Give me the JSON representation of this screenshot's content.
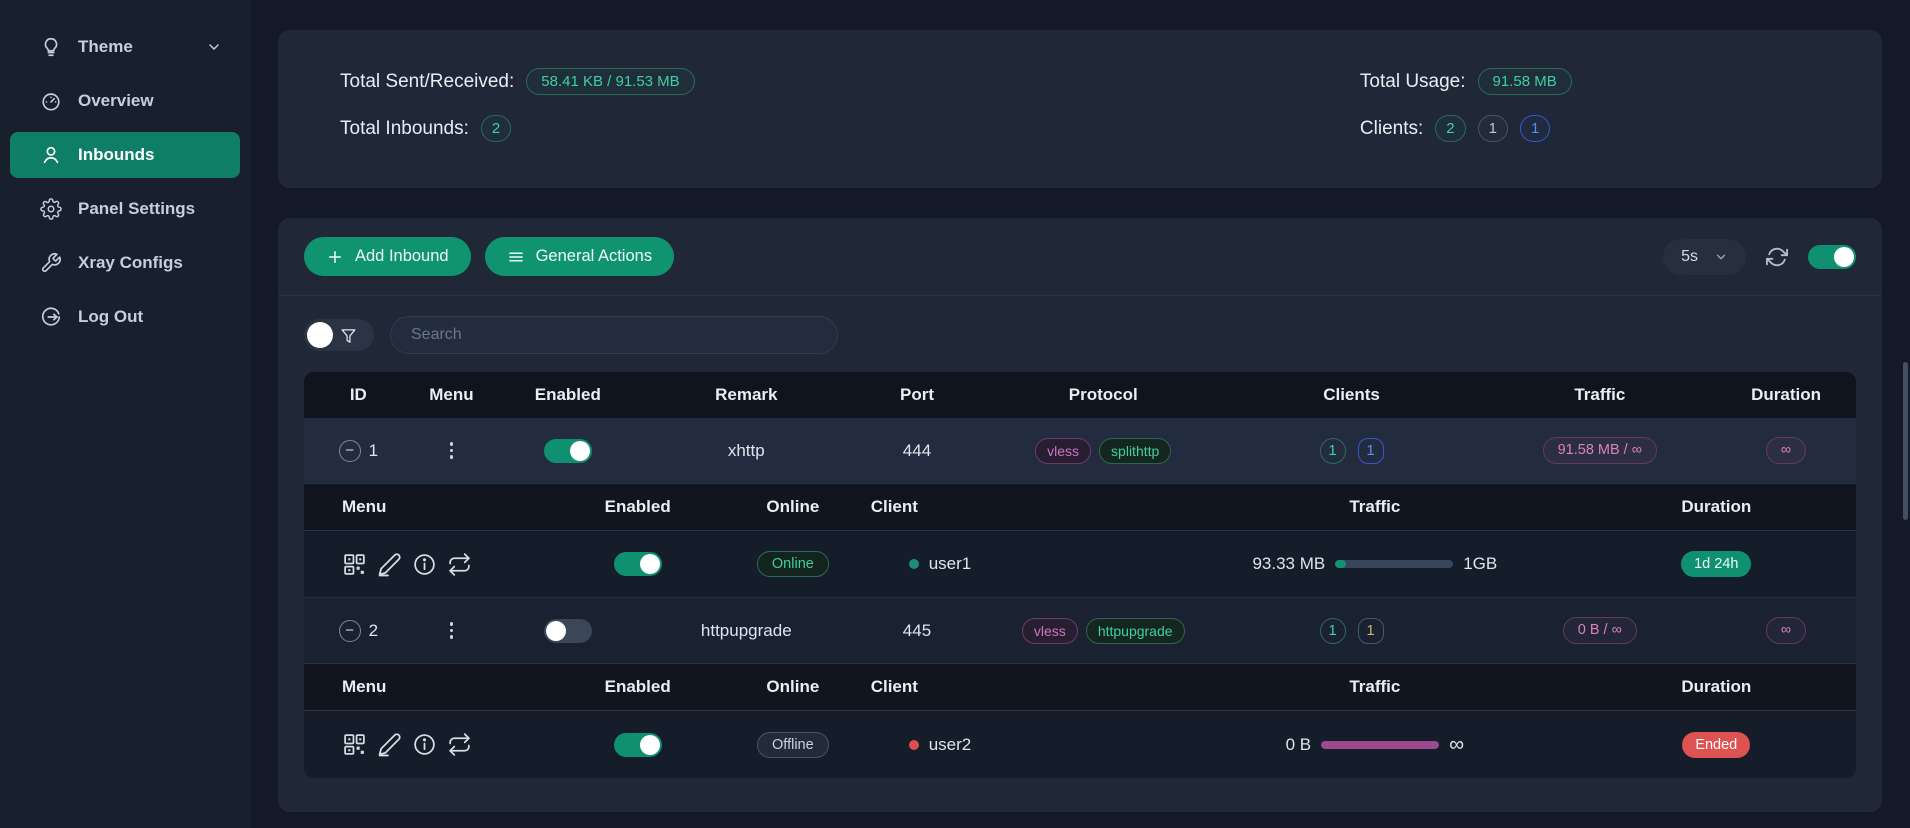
{
  "sidebar": {
    "items": [
      {
        "label": "Theme",
        "icon": "bulb-icon",
        "has_chevron": true
      },
      {
        "label": "Overview",
        "icon": "gauge-icon"
      },
      {
        "label": "Inbounds",
        "icon": "user-icon",
        "active": true
      },
      {
        "label": "Panel Settings",
        "icon": "gear-icon"
      },
      {
        "label": "Xray Configs",
        "icon": "wrench-icon"
      },
      {
        "label": "Log Out",
        "icon": "logout-icon"
      }
    ]
  },
  "stats": {
    "sent_received_label": "Total Sent/Received:",
    "sent_received_value": "58.41 KB / 91.53 MB",
    "inbounds_label": "Total Inbounds:",
    "inbounds_value": "2",
    "usage_label": "Total Usage:",
    "usage_value": "91.58 MB",
    "clients_label": "Clients:",
    "clients_values": [
      "2",
      "1",
      "1"
    ]
  },
  "toolbar": {
    "add_inbound_label": "Add Inbound",
    "general_actions_label": "General Actions",
    "refresh_interval": "5s",
    "auto_refresh_enabled": true
  },
  "search": {
    "placeholder": "Search"
  },
  "table": {
    "headers": [
      "ID",
      "Menu",
      "Enabled",
      "Remark",
      "Port",
      "Protocol",
      "Clients",
      "Traffic",
      "Duration"
    ],
    "sub_headers": [
      "Menu",
      "Enabled",
      "Online",
      "Client",
      "Traffic",
      "Duration"
    ],
    "rows": [
      {
        "id": "1",
        "enabled": true,
        "remark": "xhttp",
        "port": "444",
        "protocols": [
          "vless",
          "splithttp"
        ],
        "clients": [
          {
            "value": "1",
            "variant": "green"
          },
          {
            "value": "1",
            "variant": "blue"
          }
        ],
        "traffic": "91.58 MB / ∞",
        "duration": "∞",
        "client_rows": [
          {
            "enabled": true,
            "status": "Online",
            "name": "user1",
            "dot": "teal",
            "traffic_used": "93.33 MB",
            "traffic_total": "1GB",
            "progress_percent": 9,
            "progress_color": "green",
            "duration": "1d 24h",
            "duration_state": "active"
          }
        ]
      },
      {
        "id": "2",
        "enabled": false,
        "remark": "httpupgrade",
        "port": "445",
        "protocols": [
          "vless",
          "httpupgrade"
        ],
        "clients": [
          {
            "value": "1",
            "variant": "green"
          },
          {
            "value": "1",
            "variant": "goldgray"
          }
        ],
        "traffic": "0 B / ∞",
        "duration": "∞",
        "client_rows": [
          {
            "enabled": true,
            "status": "Offline",
            "name": "user2",
            "dot": "red",
            "traffic_used": "0 B",
            "traffic_total": "∞",
            "progress_percent": 100,
            "progress_color": "purple",
            "duration": "Ended",
            "duration_state": "ended"
          }
        ]
      }
    ]
  },
  "icons": {
    "sidebar": [
      "bulb-icon",
      "gauge-icon",
      "user-icon",
      "gear-icon",
      "wrench-icon",
      "logout-icon"
    ],
    "toolbar": [
      "plus-icon",
      "hamburger-icon",
      "chevron-down-icon",
      "refresh-icon"
    ],
    "search": [
      "funnel-icon"
    ],
    "row": [
      "collapse-icon",
      "kebab-menu-icon"
    ],
    "client_menu": [
      "qrcode-icon",
      "edit-icon",
      "info-icon",
      "repeat-icon"
    ]
  },
  "colors": {
    "accent_green": "#10946f",
    "sidebar_active": "#0e7f66",
    "green_text": "#41cf9f",
    "pink_text": "#d783bd",
    "blue_text": "#5b8bf5",
    "gold_text": "#cdb36a",
    "red_badge": "#df5252",
    "purple_progress": "#9b4a90",
    "card_bg": "#202837",
    "page_bg": "#131927"
  }
}
